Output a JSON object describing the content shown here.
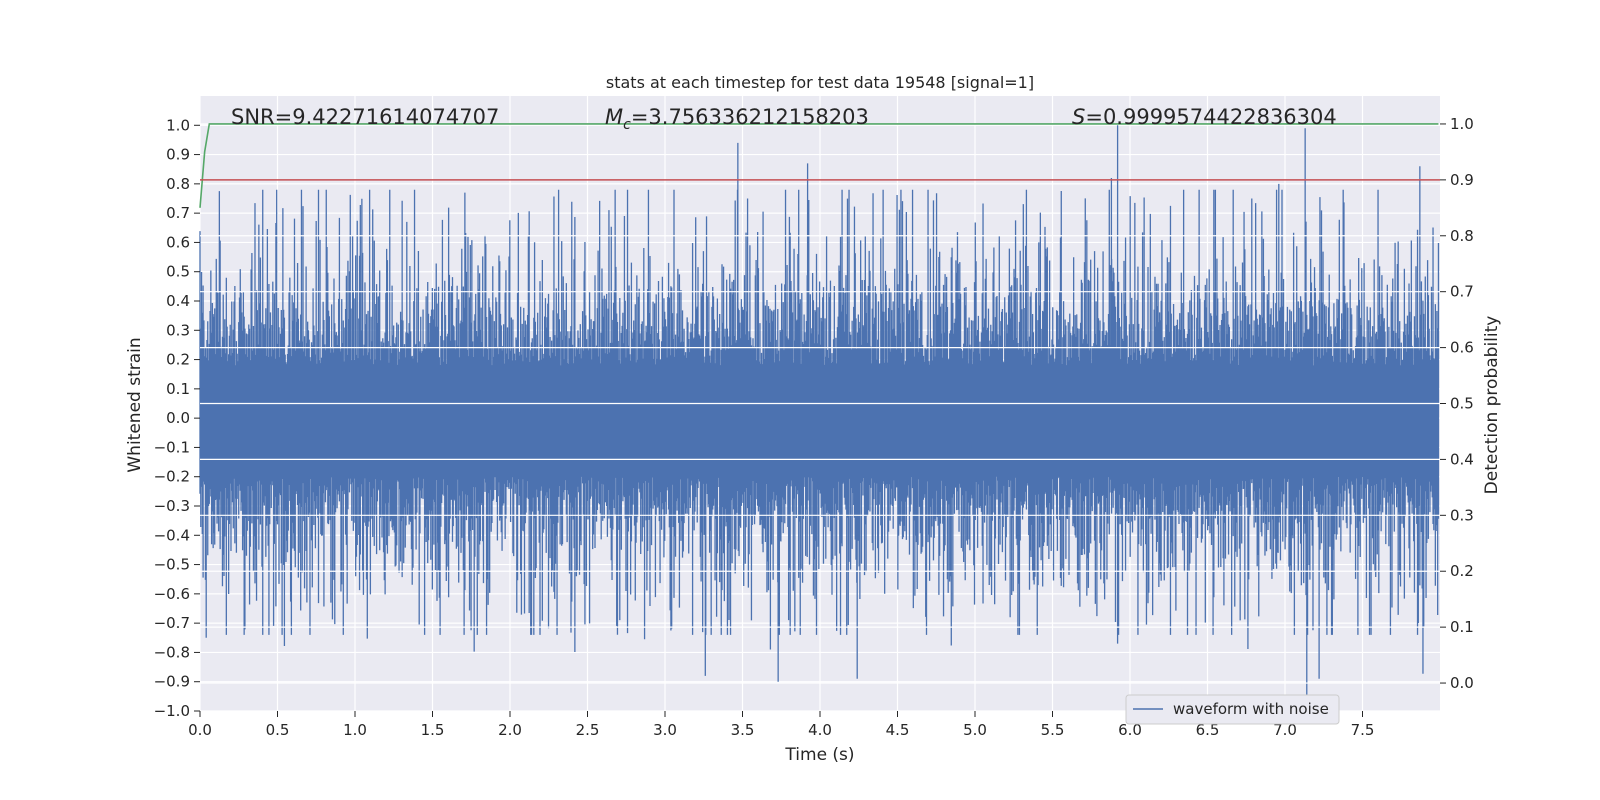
{
  "chart_data": {
    "type": "line",
    "title": "stats at each timestep for test data 19548 [signal=1]",
    "xlabel": "Time (s)",
    "ylabel": "Whitened strain",
    "y2label": "Detection probability",
    "xlim": [
      0.0,
      8.0
    ],
    "ylim": [
      -1.0,
      1.1
    ],
    "y2lim": [
      -0.05,
      1.05
    ],
    "xticks": [
      "0.0",
      "0.5",
      "1.0",
      "1.5",
      "2.0",
      "2.5",
      "3.0",
      "3.5",
      "4.0",
      "4.5",
      "5.0",
      "5.5",
      "6.0",
      "6.5",
      "7.0",
      "7.5"
    ],
    "yticks": [
      "1.0",
      "0.9",
      "0.8",
      "0.7",
      "0.6",
      "0.5",
      "0.4",
      "0.3",
      "0.2",
      "0.1",
      "0.0",
      "−0.1",
      "−0.2",
      "−0.3",
      "−0.4",
      "−0.5",
      "−0.6",
      "−0.7",
      "−0.8",
      "−0.9",
      "−1.0"
    ],
    "y2ticks": [
      "1.0",
      "0.9",
      "0.8",
      "0.7",
      "0.6",
      "0.5",
      "0.4",
      "0.3",
      "0.2",
      "0.1",
      "0.0"
    ],
    "grid": true,
    "legend_position": "lower-right",
    "annotations": {
      "snr_text": "SNR=9.42271614074707",
      "mc_symbol": "M",
      "mc_subscript": "c",
      "mc_value": "=3.756336212158203",
      "s_symbol": "S",
      "s_value": "=0.9999574422836304"
    },
    "series": [
      {
        "name": "waveform with noise",
        "axis": "left",
        "color": "#4c72b0",
        "x_range": [
          0.0,
          7.99
        ],
        "typical_amplitude": 0.4,
        "peaks": [
          {
            "x": 3.47,
            "y": 0.94
          },
          {
            "x": 3.92,
            "y": 0.87
          },
          {
            "x": 5.92,
            "y": 1.0
          },
          {
            "x": 7.13,
            "y": 0.99
          },
          {
            "x": 7.87,
            "y": 0.86
          },
          {
            "x": 5.88,
            "y": 0.82
          },
          {
            "x": 6.96,
            "y": 0.8
          },
          {
            "x": 3.26,
            "y": -0.88
          },
          {
            "x": 3.73,
            "y": -0.9
          },
          {
            "x": 4.24,
            "y": -0.89
          },
          {
            "x": 7.22,
            "y": -0.89
          },
          {
            "x": 3.68,
            "y": -0.79
          },
          {
            "x": 0.04,
            "y": -0.75
          },
          {
            "x": 5.92,
            "y": -0.77
          }
        ]
      },
      {
        "name": "",
        "axis": "right",
        "color": "#55a868",
        "x": [
          0.0,
          0.03,
          0.06,
          0.1,
          1.0,
          4.0,
          7.99
        ],
        "y": [
          0.85,
          0.95,
          1.0,
          1.0,
          1.0,
          1.0,
          1.0
        ]
      },
      {
        "name": "",
        "axis": "right",
        "color": "#c44e52",
        "x": [
          0.0,
          8.0
        ],
        "y": [
          0.9,
          0.9
        ]
      }
    ]
  }
}
